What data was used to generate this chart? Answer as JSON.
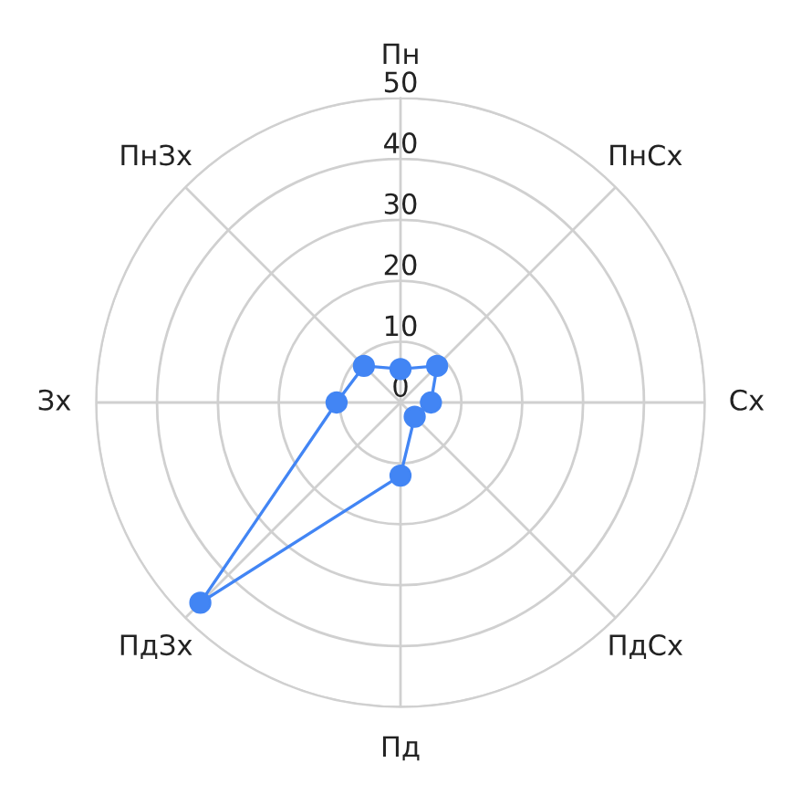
{
  "chart_data": {
    "type": "radar",
    "categories": [
      "Пн",
      "ПнСх",
      "Сх",
      "ПдСх",
      "Пд",
      "ПдЗх",
      "Зх",
      "ПнЗх"
    ],
    "series": [
      {
        "color": "#4285f4",
        "values": [
          5.5,
          8.5,
          5,
          3.3,
          12,
          46.5,
          10.5,
          8.5
        ]
      }
    ],
    "ylim": [
      0,
      50
    ],
    "yticks": [
      0,
      10,
      20,
      30,
      40,
      50
    ],
    "grid": true,
    "marker": "circle"
  }
}
